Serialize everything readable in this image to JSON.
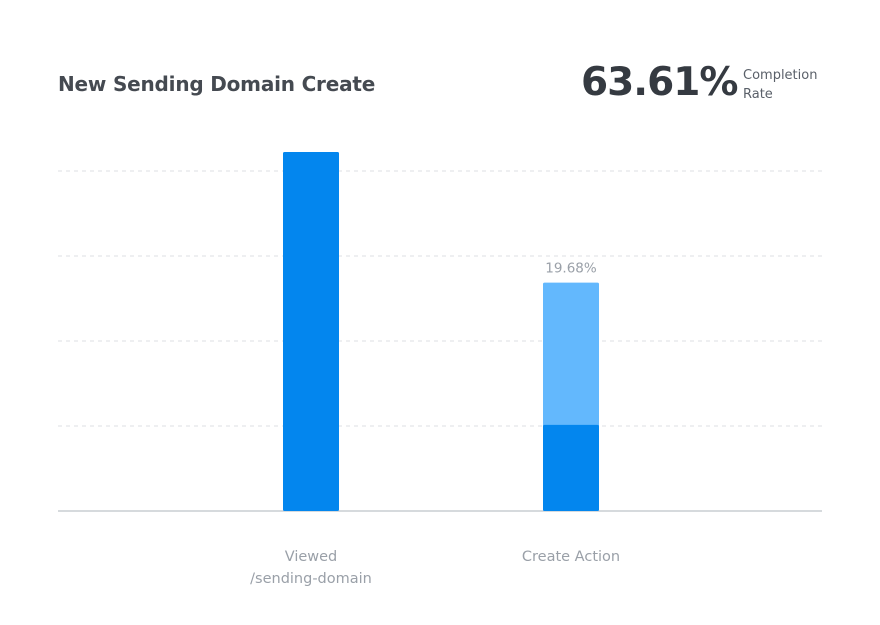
{
  "header": {
    "title": "New Sending Domain Create",
    "completion_rate": "63.61%",
    "completion_label_line1": "Completion",
    "completion_label_line2": "Rate"
  },
  "colors": {
    "primary_bar": "#0386ee",
    "secondary_bar": "#63b8fd",
    "gridline": "#dcdfe3",
    "axis": "#c9cdd2"
  },
  "chart_data": {
    "type": "bar",
    "title": "New Sending Domain Create",
    "categories": [
      [
        "Viewed",
        "/sending-domain"
      ],
      [
        "Create Action"
      ]
    ],
    "ylim": [
      0,
      100
    ],
    "grid": true,
    "values": [
      100,
      63.61
    ],
    "completed": [
      100,
      24
    ],
    "data_labels": [
      "",
      "19.68%"
    ]
  }
}
